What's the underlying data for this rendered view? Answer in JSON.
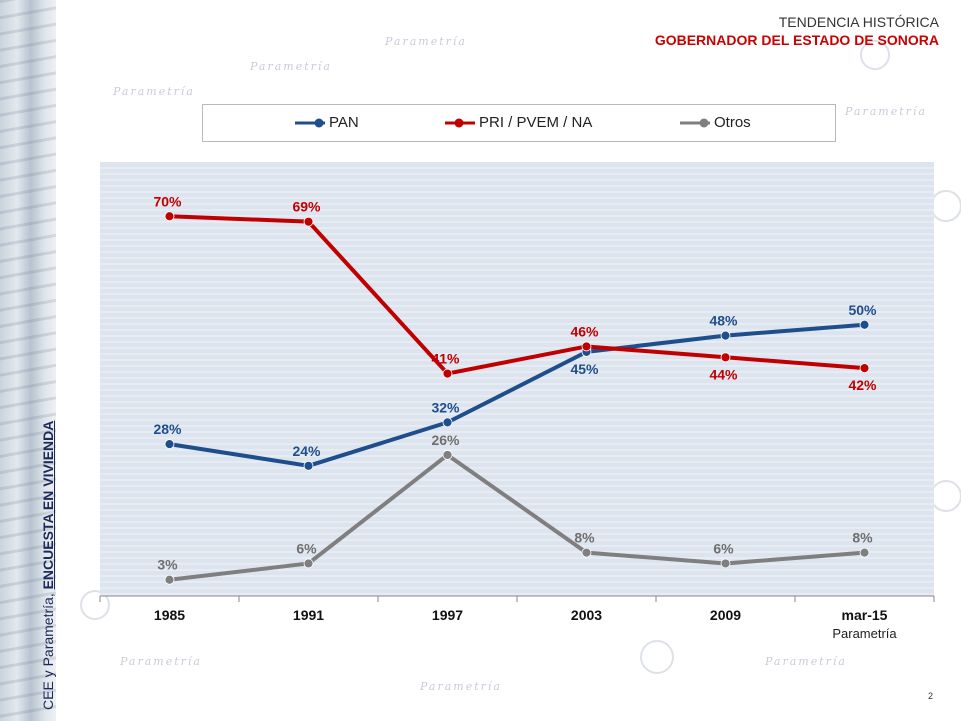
{
  "header": {
    "line1": "TENDENCIA HISTÓRICA",
    "line2": "GOBERNADOR DEL ESTADO DE SONORA"
  },
  "side_label": {
    "prefix": "CEE y Parametría, ",
    "emphasis": "ENCUESTA EN VIVIENDA"
  },
  "watermark_text": "Parametría",
  "page_number": "2",
  "colors": {
    "PAN": "#1f4e8c",
    "PRI": "#c00000",
    "Otros": "#7f7f7f",
    "plot_bg": "#dde4ee"
  },
  "chart_data": {
    "type": "line",
    "categories": [
      "1985",
      "1991",
      "1997",
      "2003",
      "2009",
      "mar-15"
    ],
    "category_sublabels": [
      "",
      "",
      "",
      "",
      "",
      "Parametría"
    ],
    "ylim": [
      0,
      80
    ],
    "grid": true,
    "legend_position": "top",
    "series": [
      {
        "name": "PAN",
        "values": [
          28,
          24,
          32,
          45,
          48,
          50
        ],
        "labels": [
          "28%",
          "24%",
          "32%",
          "45%",
          "48%",
          "50%"
        ]
      },
      {
        "name": "PRI / PVEM / NA",
        "values": [
          70,
          69,
          41,
          46,
          44,
          42
        ],
        "labels": [
          "70%",
          "69%",
          "41%",
          "46%",
          "44%",
          "42%"
        ]
      },
      {
        "name": "Otros",
        "values": [
          3,
          6,
          26,
          8,
          6,
          8
        ],
        "labels": [
          "3%",
          "6%",
          "26%",
          "8%",
          "6%",
          "8%"
        ]
      }
    ]
  }
}
